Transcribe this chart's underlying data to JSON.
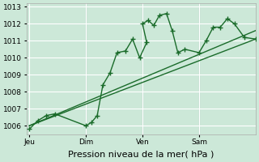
{
  "xlabel": "Pression niveau de la mer( hPa )",
  "bg_color": "#cce8d8",
  "grid_color": "#ffffff",
  "line_color": "#1a6b2a",
  "xtick_labels": [
    "Jeu",
    "Dim",
    "Ven",
    "Sam"
  ],
  "xtick_positions": [
    0,
    4,
    8,
    12
  ],
  "ylim": [
    1005.5,
    1013.2
  ],
  "xlim": [
    -0.2,
    16.0
  ],
  "yticks": [
    1006,
    1007,
    1008,
    1009,
    1010,
    1011,
    1012,
    1013
  ],
  "series1_x": [
    0,
    0.6,
    1.2,
    1.8,
    4.0,
    4.4,
    4.8,
    5.2,
    5.7,
    6.2,
    6.8,
    7.3,
    7.8,
    8.3,
    8.0,
    8.4,
    8.8,
    9.2,
    9.7,
    10.1,
    10.5,
    11.0,
    12.0,
    12.5,
    13.0,
    13.5,
    14.0,
    14.5,
    15.2,
    16.0
  ],
  "series1_y": [
    1005.8,
    1006.3,
    1006.6,
    1006.7,
    1006.0,
    1006.2,
    1006.6,
    1008.4,
    1009.1,
    1010.3,
    1010.4,
    1011.1,
    1010.0,
    1010.9,
    1012.0,
    1012.2,
    1011.9,
    1012.5,
    1012.6,
    1011.6,
    1010.3,
    1010.5,
    1010.3,
    1011.0,
    1011.8,
    1011.8,
    1012.3,
    1012.0,
    1011.2,
    1011.1
  ],
  "series2_x": [
    0,
    16.0
  ],
  "series2_y": [
    1006.0,
    1011.1
  ],
  "series3_x": [
    0,
    16.0
  ],
  "series3_y": [
    1006.0,
    1011.6
  ],
  "vlines_x": [
    4.0,
    8.0,
    12.0
  ],
  "vline_color": "#8899aa",
  "marker": "+",
  "markersize": 4,
  "linewidth_main": 1.0,
  "linewidth_smooth": 1.0,
  "tick_fontsize": 6.5,
  "xlabel_fontsize": 8.0
}
